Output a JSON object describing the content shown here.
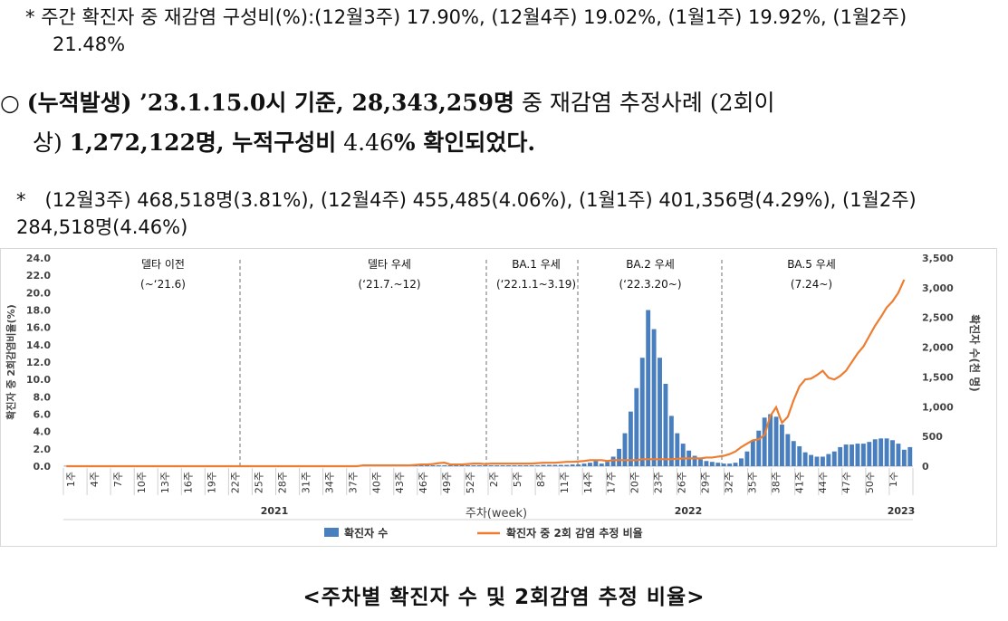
{
  "note1": {
    "prefix": "*",
    "text": "주간 확진자 중 재감염 구성비(%):(12월3주) 17.90%, (12월4주) 19.02%, (1월1주) 19.92%, (1월2주)",
    "wrap": "21.48%"
  },
  "summary": {
    "bullet": "○",
    "text_a": "(누적발생) ’23.1.15.0시 기준, ",
    "text_b": "28,343,259명",
    "text_c": " 중 재감염 추정사례 (2회이",
    "text_d": "상) ",
    "text_e": "1,272,122명, 누적구성비",
    "text_f": " 4.46",
    "text_g": "% 확인되었다."
  },
  "note2": {
    "text": "*　(12월3주) 468,518명(3.81%), (12월4주) 455,485(4.06%), (1월1주) 401,356명(4.29%), (1월2주)",
    "wrap": "284,518명(4.46%)"
  },
  "caption": "<주차별 확진자 수 및 2회감염 추정 비율>",
  "chart_data": {
    "type": "bar+line",
    "colors": {
      "bars": "#4a7fbf",
      "line": "#ed7d31",
      "divider": "#6f6f6f"
    },
    "x_axis": {
      "title": "주차(week)",
      "tick_labels": [
        "1주",
        "4주",
        "7주",
        "10주",
        "13주",
        "16주",
        "19주",
        "22주",
        "25주",
        "28주",
        "31주",
        "34주",
        "37주",
        "40주",
        "43주",
        "46주",
        "49주",
        "52주",
        "2주",
        "5주",
        "8주",
        "11주",
        "14주",
        "17주",
        "20주",
        "23주",
        "26주",
        "29주",
        "32주",
        "35주",
        "38주",
        "41주",
        "44주",
        "47주",
        "50주",
        "1주"
      ],
      "years": [
        "2021",
        "2022",
        "2023"
      ]
    },
    "y_left": {
      "label": "확진자 중 2회감염비율(%)",
      "ticks": [
        "0.0",
        "2.0",
        "4.0",
        "6.0",
        "8.0",
        "10.0",
        "12.0",
        "14.0",
        "16.0",
        "18.0",
        "20.0",
        "22.0",
        "24.0"
      ],
      "range": [
        0,
        24
      ]
    },
    "y_right": {
      "label": "확진자 수(천 명)",
      "ticks": [
        "0",
        "500",
        "1,000",
        "1,500",
        "2,000",
        "2,500",
        "3,000",
        "3,500"
      ],
      "range": [
        0,
        3500
      ]
    },
    "periods": [
      {
        "name": "델타 이전",
        "range": "(~‘21.6)"
      },
      {
        "name": "델타 우세",
        "range": "(‘21.7.~12)"
      },
      {
        "name": "BA.1 우세",
        "range": "(‘22.1.1~3.19)"
      },
      {
        "name": "BA.2 우세",
        "range": "(‘22.3.20~)"
      },
      {
        "name": "BA.5 우세",
        "range": "(7.24~)"
      }
    ],
    "legend": [
      "확진자 수",
      "확진자 중 2회 감염 추정 비율"
    ],
    "series": [
      {
        "name": "확진자 수",
        "axis": "left",
        "values": [
          0.05,
          0.05,
          0.05,
          0.05,
          0.05,
          0.05,
          0.05,
          0.05,
          0.05,
          0.05,
          0.05,
          0.05,
          0.05,
          0.05,
          0.05,
          0.05,
          0.05,
          0.05,
          0.05,
          0.05,
          0.05,
          0.05,
          0.05,
          0.05,
          0.05,
          0.05,
          0.05,
          0.05,
          0.05,
          0.05,
          0.05,
          0.05,
          0.05,
          0.05,
          0.05,
          0.05,
          0.05,
          0.05,
          0.05,
          0.05,
          0.05,
          0.05,
          0.05,
          0.05,
          0.05,
          0.05,
          0.05,
          0.05,
          0.05,
          0.05,
          0.05,
          0.05,
          0.1,
          0.1,
          0.1,
          0.1,
          0.1,
          0.1,
          0.1,
          0.1,
          0.1,
          0.1,
          0.1,
          0.1,
          0.1,
          0.1,
          0.1,
          0.1,
          0.1,
          0.1,
          0.1,
          0.1,
          0.1,
          0.1,
          0.1,
          0.1,
          0.1,
          0.1,
          0.1,
          0.1,
          0.1,
          0.1,
          0.15,
          0.15,
          0.15,
          0.15,
          0.15,
          0.2,
          0.2,
          0.3,
          0.4,
          0.6,
          0.3,
          0.5,
          1.1,
          2.0,
          3.8,
          6.3,
          9.0,
          12.5,
          18.0,
          15.8,
          12.5,
          9.5,
          5.8,
          3.8,
          2.6,
          1.8,
          1.2,
          0.8,
          0.6,
          0.5,
          0.4,
          0.3,
          0.3,
          0.4,
          0.9,
          1.7,
          3.0,
          4.1,
          5.6,
          6.0,
          5.7,
          4.8,
          3.7,
          2.9,
          2.3,
          1.6,
          1.3,
          1.1,
          1.1,
          1.4,
          1.7,
          2.2,
          2.5,
          2.5,
          2.6,
          2.6,
          2.8,
          3.1,
          3.2,
          3.2,
          3.0,
          2.6,
          1.9,
          2.2
        ]
      },
      {
        "name": "확진자 중 2회 감염 추정 비율",
        "axis": "left",
        "values": [
          0.0,
          0.0,
          0.0,
          0.0,
          0.0,
          0.0,
          0.0,
          0.0,
          0.0,
          0.0,
          0.0,
          0.0,
          0.0,
          0.0,
          0.0,
          0.0,
          0.0,
          0.0,
          0.0,
          0.0,
          0.0,
          0.0,
          0.0,
          0.0,
          0.0,
          0.0,
          0.0,
          0.0,
          0.0,
          0.0,
          0.0,
          0.0,
          0.0,
          0.0,
          0.0,
          0.0,
          0.0,
          0.0,
          0.0,
          0.0,
          0.0,
          0.0,
          0.0,
          0.0,
          0.0,
          0.0,
          0.0,
          0.0,
          0.0,
          0.0,
          0.0,
          0.1,
          0.1,
          0.1,
          0.1,
          0.1,
          0.1,
          0.1,
          0.1,
          0.1,
          0.15,
          0.2,
          0.2,
          0.25,
          0.35,
          0.4,
          0.2,
          0.2,
          0.2,
          0.25,
          0.3,
          0.3,
          0.25,
          0.3,
          0.3,
          0.3,
          0.3,
          0.3,
          0.3,
          0.3,
          0.3,
          0.35,
          0.4,
          0.4,
          0.4,
          0.45,
          0.5,
          0.5,
          0.55,
          0.6,
          0.7,
          0.7,
          0.7,
          0.6,
          0.7,
          0.7,
          0.7,
          0.7,
          0.7,
          0.8,
          0.8,
          0.8,
          0.8,
          0.8,
          0.8,
          0.85,
          0.9,
          0.9,
          0.9,
          0.9,
          1.0,
          1.0,
          1.1,
          1.2,
          1.4,
          1.7,
          2.2,
          2.6,
          3.0,
          3.1,
          3.6,
          5.8,
          6.8,
          5.0,
          5.7,
          7.6,
          9.2,
          10.0,
          10.1,
          10.5,
          11.0,
          10.2,
          10.0,
          10.4,
          11.0,
          12.0,
          13.0,
          13.8,
          15.0,
          16.2,
          17.2,
          18.3,
          19.0,
          20.0,
          21.5
        ]
      }
    ]
  }
}
